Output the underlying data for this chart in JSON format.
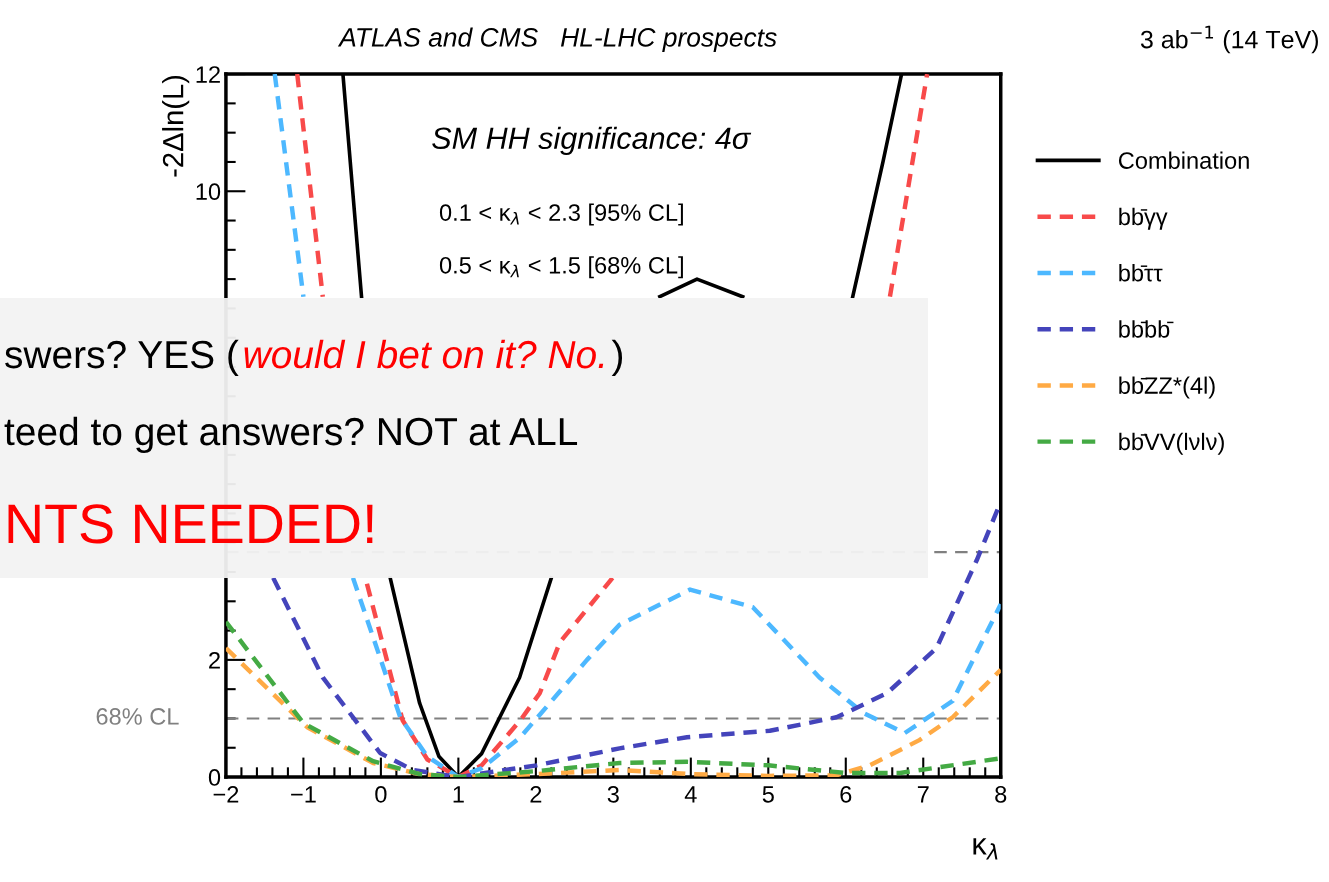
{
  "chart_data": {
    "type": "line",
    "title": "ATLAS and CMS   HL-LHC prospects",
    "subtitle": "3 ab$^{−1}$ (14 TeV)",
    "xlabel": "κ$_{λ}$",
    "ylabel": "-2Δln(L)",
    "xlim": [
      -2,
      8
    ],
    "ylim": [
      0,
      12
    ],
    "xticks": [
      {
        "value": -2,
        "label": "−2"
      },
      {
        "value": -1,
        "label": "−1"
      },
      0,
      1,
      2,
      3,
      4,
      5,
      6,
      7,
      8
    ],
    "yticks": [
      0,
      2,
      10,
      12
    ],
    "grid": false,
    "legend": "top right",
    "line_style": "dashed",
    "marker": "none",
    "series": [
      {
        "name": "Combination",
        "color": "#000000",
        "line_style": "solid",
        "x": [
          -0.49,
          -0.25,
          0,
          0.12,
          0.5,
          0.75,
          1,
          1.3,
          1.79,
          2.2,
          3,
          3.6,
          4.08,
          4.67,
          5.5,
          6.09,
          6.48,
          6.72
        ],
        "values": [
          12,
          8.2,
          null,
          3.4,
          1.26,
          0.35,
          0,
          0.4,
          1.7,
          3.4,
          null,
          8.2,
          8.5,
          8.2,
          null,
          8.2,
          10.5,
          12
        ]
      },
      {
        "name": "bb̄γγ",
        "color": "#f84a4a",
        "x": [
          -1.08,
          -0.75,
          -0.5,
          -0.18,
          0.28,
          0.6,
          1,
          1.3,
          1.8,
          2.05,
          2.31,
          2.99,
          4.5,
          6.57,
          7.05
        ],
        "values": [
          12,
          8.2,
          null,
          3.3,
          0.97,
          0.3,
          0,
          0.2,
          0.97,
          1.43,
          2.3,
          3.4,
          null,
          8.2,
          12
        ]
      },
      {
        "name": "bb̄ττ",
        "color": "#4db8ff",
        "x": [
          -1.37,
          -1.0,
          -0.7,
          -0.36,
          0.25,
          0.6,
          1,
          1.3,
          1.8,
          2.66,
          3.08,
          3.99,
          4.8,
          5.66,
          6.22,
          6.76,
          7.38,
          8
        ],
        "values": [
          12,
          8.2,
          null,
          3.4,
          1.02,
          0.35,
          0,
          0.15,
          0.68,
          2.0,
          2.6,
          3.2,
          2.9,
          1.7,
          1.1,
          0.75,
          1.3,
          2.95
        ]
      },
      {
        "name": "bb̄bb̄",
        "color": "#4444bb",
        "x": [
          -1.39,
          -0.75,
          -0.01,
          0.41,
          1,
          2.01,
          3.08,
          3.95,
          5.02,
          5.88,
          6.53,
          7.17,
          7.69,
          8
        ],
        "values": [
          3.4,
          1.7,
          0.41,
          0.12,
          0,
          0.2,
          0.49,
          0.68,
          0.79,
          1.02,
          1.43,
          2.2,
          3.7,
          4.7
        ]
      },
      {
        "name": "bb̄ZZ*(4l)",
        "color": "#ffaa44",
        "x": [
          -2,
          -0.95,
          -0.1,
          0.5,
          1,
          2,
          3.08,
          4,
          5,
          5.88,
          6.31,
          6.95,
          7.38,
          8
        ],
        "values": [
          2.2,
          0.85,
          0.24,
          0.05,
          0,
          0.05,
          0.12,
          0.05,
          0.02,
          0.03,
          0.2,
          0.63,
          1.02,
          1.83
        ]
      },
      {
        "name": "bb̄VV(lνlν)",
        "color": "#44aa44",
        "x": [
          -2,
          -1.0,
          -0.1,
          0.5,
          1,
          2,
          3.08,
          3.95,
          5,
          6.0,
          6.7,
          8
        ],
        "values": [
          2.65,
          0.92,
          0.27,
          0.05,
          0,
          0.1,
          0.24,
          0.26,
          0.2,
          0.07,
          0.07,
          0.32
        ]
      }
    ],
    "ref_lines": [
      {
        "axis": "y",
        "value": 1,
        "label": "68% CL",
        "color": "#808080",
        "line_style": "dashed"
      },
      {
        "axis": "y",
        "value": 3.84,
        "color": "#808080",
        "line_style": "dashed"
      }
    ],
    "annotations": [
      "SM HH significance: 4σ",
      "0.1 < κ$_{λ}$ < 2.3 [95% CL]",
      "0.5 < κ$_{λ}$ < 1.5 [68% CL]",
      "swers? YES (",
      "would I bet on it? No.",
      ")",
      "teed to get answers? NOT at ALL",
      "NTS NEEDED!"
    ]
  }
}
